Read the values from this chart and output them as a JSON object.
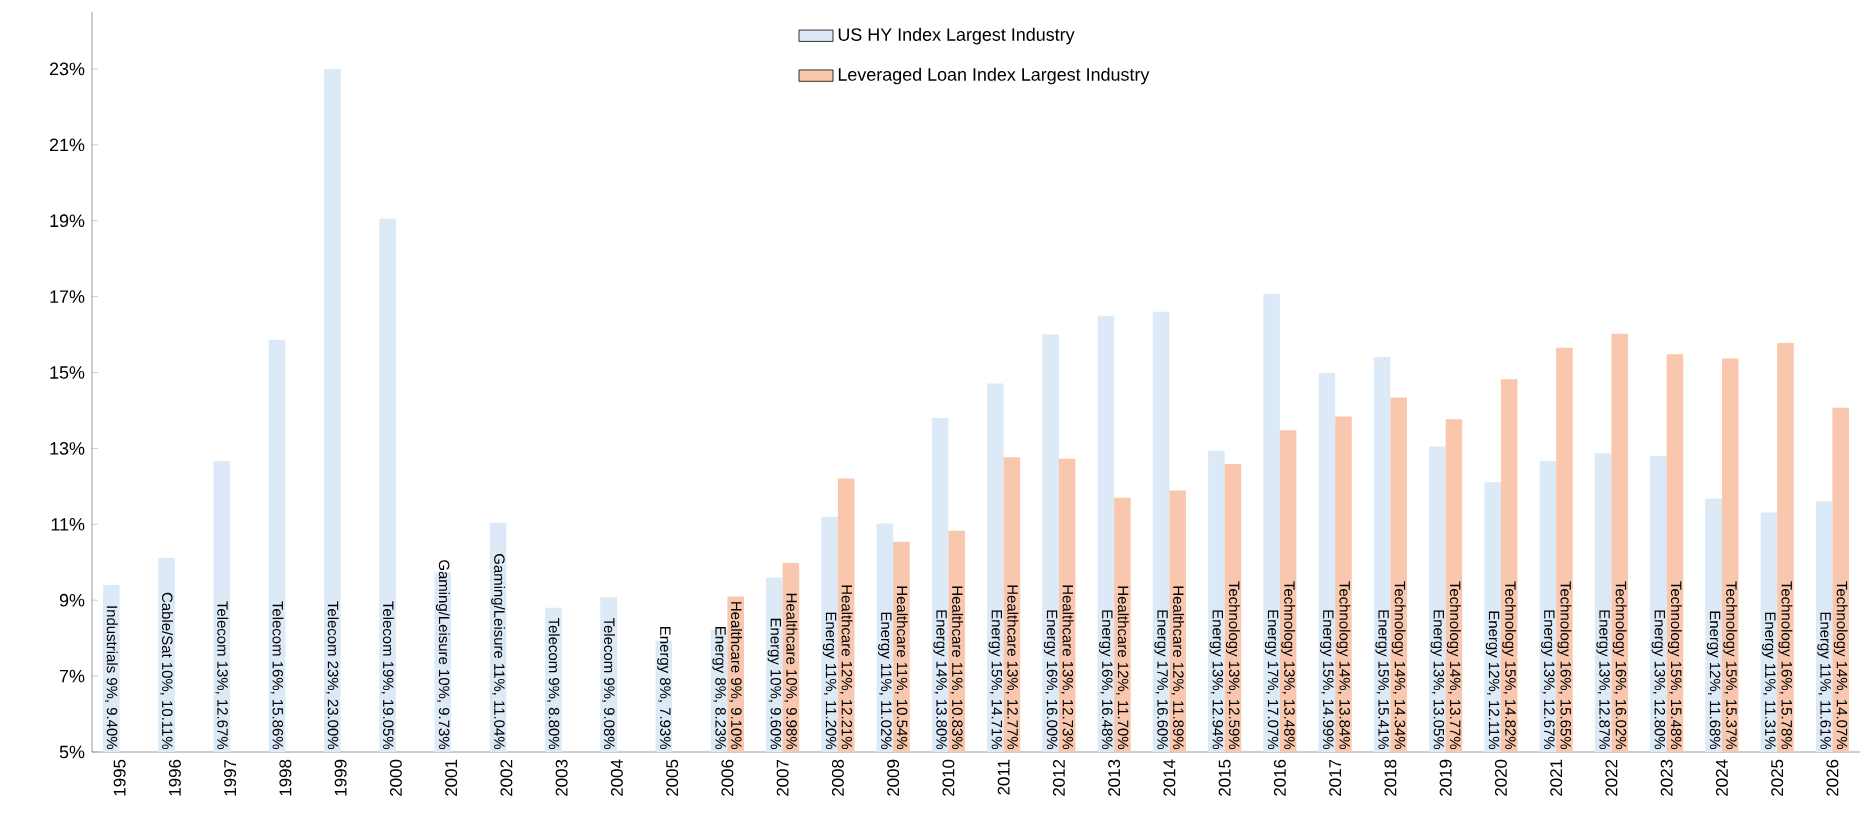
{
  "chart_data": {
    "type": "bar",
    "categories": [
      "1995",
      "1996",
      "1997",
      "1998",
      "1999",
      "2000",
      "2001",
      "2002",
      "2003",
      "2004",
      "2005",
      "2006",
      "2007",
      "2008",
      "2009",
      "2010",
      "2011",
      "2012",
      "2013",
      "2014",
      "2015",
      "2016",
      "2017",
      "2018",
      "2019",
      "2020",
      "2021",
      "2022",
      "2023",
      "2024",
      "2025",
      "2026"
    ],
    "series": [
      {
        "name": "US HY Index Largest Industry",
        "color": "#dce9f6",
        "values": [
          9.4,
          10.11,
          12.67,
          15.86,
          23.0,
          19.05,
          9.73,
          11.04,
          8.8,
          9.08,
          7.93,
          8.23,
          9.6,
          11.2,
          11.02,
          13.8,
          14.71,
          16.0,
          16.48,
          16.6,
          12.94,
          17.07,
          14.99,
          15.41,
          13.05,
          12.11,
          12.67,
          12.87,
          12.8,
          11.68,
          11.31,
          11.61
        ],
        "value_labels": [
          "Industrials 9%, 9.40%",
          "Cable/Sat 10%, 10.11%",
          "Telecom 13%, 12.67%",
          "Telecom 16%, 15.86%",
          "Telecom 23%, 23.00%",
          "Telecom 19%, 19.05%",
          "Gaming/Leisure 10%, 9.73%",
          "Gaming/Leisure 11%, 11.04%",
          "Telecom 9%, 8.80%",
          "Telecom 9%, 9.08%",
          "Energy 8%, 7.93%",
          "Energy 8%, 8.23%",
          "Energy 10%, 9.60%",
          "Energy 11%, 11.20%",
          "Energy 11%, 11.02%",
          "Energy 14%, 13.80%",
          "Energy 15%, 14.71%",
          "Energy 16%, 16.00%",
          "Energy 16%, 16.48%",
          "Energy 17%, 16.60%",
          "Energy 13%, 12.94%",
          "Energy 17%, 17.07%",
          "Energy 15%, 14.99%",
          "Energy 15%, 15.41%",
          "Energy 13%, 13.05%",
          "Energy 12%, 12.11%",
          "Energy 13%, 12.67%",
          "Energy 13%, 12.87%",
          "Energy 13%, 12.80%",
          "Energy 12%, 11.68%",
          "Energy 11%, 11.31%",
          "Energy 11%, 11.61%"
        ]
      },
      {
        "name": "Leveraged Loan Index Largest Industry",
        "color": "#f8c7ad",
        "values": [
          null,
          null,
          null,
          null,
          null,
          null,
          null,
          null,
          null,
          null,
          null,
          9.1,
          9.98,
          12.21,
          10.54,
          10.83,
          12.77,
          12.73,
          11.7,
          11.89,
          12.59,
          13.48,
          13.84,
          14.34,
          13.77,
          14.82,
          15.65,
          16.02,
          15.48,
          15.37,
          15.78,
          14.07
        ],
        "value_labels": [
          null,
          null,
          null,
          null,
          null,
          null,
          null,
          null,
          null,
          null,
          null,
          "Healthcare 9%, 9.10%",
          "Healthcare 10%, 9.98%",
          "Healthcare 12%, 12.21%",
          "Healthcare 11%, 10.54%",
          "Healthcare 11%, 10.83%",
          "Healthcare 13%, 12.77%",
          "Healthcare 13%, 12.73%",
          "Healthcare 12%, 11.70%",
          "Healthcare 12%, 11.89%",
          "Technology 13%, 12.59%",
          "Technology 13%, 13.48%",
          "Technology 14%, 13.84%",
          "Technology 14%, 14.34%",
          "Technology 14%, 13.77%",
          "Technology 15%, 14.82%",
          "Technology 16%, 15.65%",
          "Technology 16%, 16.02%",
          "Technology 15%, 15.48%",
          "Technology 15%, 15.37%",
          "Technology 16%, 15.78%",
          "Technology 14%, 14.07%"
        ]
      }
    ],
    "ylim": [
      5,
      24.5
    ],
    "yticks": [
      {
        "value": 5,
        "label": "5%"
      },
      {
        "value": 7,
        "label": "7%"
      },
      {
        "value": 9,
        "label": "9%"
      },
      {
        "value": 11,
        "label": "11%"
      },
      {
        "value": 13,
        "label": "13%"
      },
      {
        "value": 15,
        "label": "15%"
      },
      {
        "value": 17,
        "label": "17%"
      },
      {
        "value": 19,
        "label": "19%"
      },
      {
        "value": 21,
        "label": "21%"
      },
      {
        "value": 23,
        "label": "23%"
      }
    ],
    "grid": false,
    "legend": "top"
  }
}
